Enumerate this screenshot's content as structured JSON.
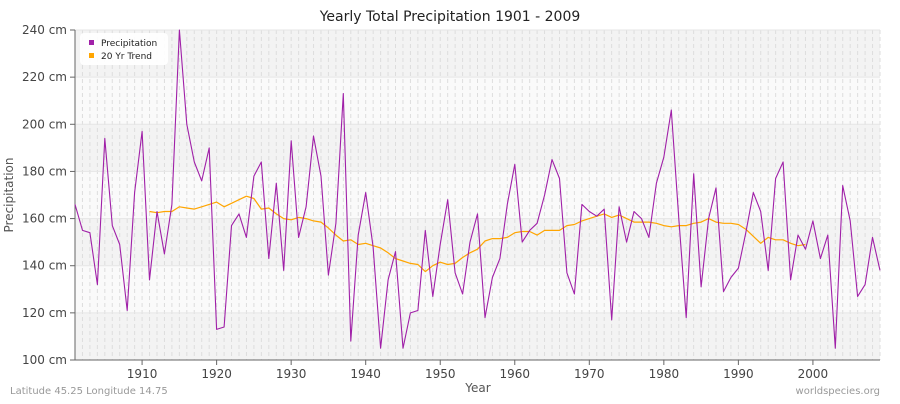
{
  "chart_data": {
    "type": "line",
    "title": "Yearly Total Precipitation 1901 - 2009",
    "xlabel": "Year",
    "ylabel": "Precipitation",
    "xlim": [
      1901,
      2009
    ],
    "ylim": [
      100,
      240
    ],
    "y_ticks": [
      100,
      120,
      140,
      160,
      180,
      200,
      220,
      240
    ],
    "y_tick_labels": [
      "100 cm",
      "120 cm",
      "140 cm",
      "160 cm",
      "180 cm",
      "200 cm",
      "220 cm",
      "240 cm"
    ],
    "x_ticks": [
      1910,
      1920,
      1930,
      1940,
      1950,
      1960,
      1970,
      1980,
      1990,
      2000
    ],
    "x_tick_labels": [
      "1910",
      "1920",
      "1930",
      "1940",
      "1950",
      "1960",
      "1970",
      "1980",
      "1990",
      "2000"
    ],
    "grid": true,
    "legend_position": "top-left",
    "series": [
      {
        "name": "Precipitation",
        "color": "#a020a8",
        "x_start": 1901,
        "values": [
          166,
          155,
          154,
          132,
          194,
          157,
          149,
          121,
          171,
          197,
          134,
          163,
          145,
          166,
          240,
          200,
          184,
          176,
          190,
          113,
          114,
          157,
          162,
          152,
          178,
          184,
          143,
          175,
          138,
          193,
          152,
          165,
          195,
          178,
          136,
          158,
          213,
          108,
          153,
          171,
          148,
          105,
          134,
          146,
          105,
          120,
          121,
          155,
          127,
          149,
          168,
          137,
          128,
          150,
          162,
          118,
          135,
          143,
          166,
          183,
          150,
          155,
          158,
          170,
          185,
          177,
          137,
          128,
          166,
          163,
          161,
          164,
          117,
          165,
          150,
          163,
          160,
          152,
          175,
          186,
          206,
          160,
          118,
          179,
          131,
          160,
          173,
          129,
          135,
          139,
          154,
          171,
          163,
          138,
          177,
          184,
          134,
          153,
          147,
          159,
          143,
          153,
          105,
          174,
          159,
          127,
          132,
          152,
          138
        ]
      },
      {
        "name": "20 Yr Trend",
        "color": "#ffa500",
        "x_start": 1911,
        "values": [
          163,
          162.5,
          163,
          163,
          165,
          164.5,
          164,
          165,
          166,
          167,
          165,
          166.5,
          168,
          169.5,
          168.5,
          164,
          164.5,
          162,
          160,
          159.5,
          160.5,
          160,
          159,
          158.5,
          156,
          153,
          150.5,
          151,
          149,
          149.5,
          148.5,
          147.5,
          145.5,
          143,
          142,
          141,
          140.5,
          137.5,
          140,
          141.5,
          140.5,
          141,
          143.5,
          145.5,
          147,
          150.5,
          151.5,
          151.5,
          152,
          154,
          154.5,
          154.5,
          153,
          155,
          155,
          155,
          157,
          157.5,
          159,
          160,
          161,
          162,
          160.5,
          161.5,
          160,
          158.5,
          158.5,
          158.5,
          158,
          157,
          156.5,
          157,
          157,
          158,
          158.5,
          160,
          158.5,
          158,
          158,
          157.5,
          155.5,
          152.5,
          149.5,
          152,
          151,
          151,
          149.5,
          148.5,
          149
        ]
      }
    ]
  },
  "footer": {
    "location": "Latitude 45.25 Longitude 14.75",
    "source": "worldspecies.org"
  }
}
